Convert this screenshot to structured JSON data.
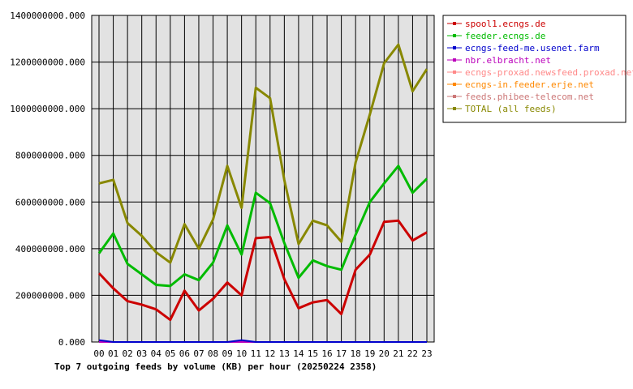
{
  "chart_data": {
    "type": "line",
    "title": "Top 7 outgoing feeds by volume (KB) per hour (20250224 2358)",
    "xlabel": "",
    "ylabel": "",
    "categories": [
      "00",
      "01",
      "02",
      "03",
      "04",
      "05",
      "06",
      "07",
      "08",
      "09",
      "10",
      "11",
      "12",
      "13",
      "14",
      "15",
      "16",
      "17",
      "18",
      "19",
      "20",
      "21",
      "22",
      "23"
    ],
    "ylim": [
      0,
      1400000000
    ],
    "y_ticks": [
      0,
      200000000,
      400000000,
      600000000,
      800000000,
      1000000000,
      1200000000,
      1400000000
    ],
    "y_tick_labels": [
      "0.000",
      "200000000.000",
      "400000000.000",
      "600000000.000",
      "800000000.000",
      "1000000000.000",
      "1200000000.000",
      "1400000000.000"
    ],
    "grid": true,
    "legend_position": "right",
    "series": [
      {
        "name": "spool1.ecngs.de",
        "color": "#cc0000",
        "values": [
          295000000,
          230000000,
          175000000,
          160000000,
          140000000,
          95000000,
          220000000,
          135000000,
          185000000,
          255000000,
          200000000,
          445000000,
          450000000,
          270000000,
          145000000,
          170000000,
          180000000,
          120000000,
          310000000,
          375000000,
          515000000,
          520000000,
          435000000,
          470000000
        ]
      },
      {
        "name": "feeder.ecngs.de",
        "color": "#00bb00",
        "values": [
          380000000,
          465000000,
          335000000,
          290000000,
          245000000,
          240000000,
          290000000,
          265000000,
          340000000,
          500000000,
          375000000,
          640000000,
          595000000,
          425000000,
          275000000,
          350000000,
          325000000,
          310000000,
          460000000,
          600000000,
          680000000,
          755000000,
          640000000,
          700000000
        ]
      },
      {
        "name": "ecngs-feed-me.usenet.farm",
        "color": "#0000cc",
        "values": [
          8000000,
          0,
          0,
          0,
          0,
          0,
          0,
          0,
          0,
          0,
          8000000,
          0,
          0,
          0,
          0,
          0,
          0,
          0,
          0,
          0,
          0,
          0,
          0,
          0
        ]
      },
      {
        "name": "nbr.elbracht.net",
        "color": "#bb00bb",
        "values": [
          0,
          0,
          0,
          0,
          0,
          0,
          0,
          0,
          0,
          0,
          0,
          0,
          0,
          0,
          0,
          0,
          0,
          0,
          0,
          0,
          0,
          0,
          0,
          0
        ]
      },
      {
        "name": "ecngs-proxad.newsfeed.proxad.net",
        "color": "#ff8888",
        "values": [
          0,
          0,
          0,
          0,
          0,
          0,
          0,
          0,
          0,
          0,
          0,
          0,
          0,
          0,
          0,
          0,
          0,
          0,
          0,
          0,
          0,
          0,
          0,
          0
        ]
      },
      {
        "name": "ecngs-in.feeder.erje.net",
        "color": "#ff8800",
        "values": [
          0,
          0,
          0,
          0,
          0,
          0,
          0,
          0,
          0,
          0,
          0,
          0,
          0,
          0,
          0,
          0,
          0,
          0,
          0,
          0,
          0,
          0,
          0,
          0
        ]
      },
      {
        "name": "feeds.phibee-telecom.net",
        "color": "#cc7777",
        "values": [
          0,
          0,
          0,
          0,
          0,
          0,
          0,
          0,
          0,
          0,
          0,
          0,
          0,
          0,
          0,
          0,
          0,
          0,
          0,
          0,
          0,
          0,
          0,
          0
        ]
      },
      {
        "name": "TOTAL (all feeds)",
        "color": "#888800",
        "values": [
          680000000,
          695000000,
          510000000,
          455000000,
          385000000,
          340000000,
          505000000,
          400000000,
          525000000,
          755000000,
          575000000,
          1090000000,
          1045000000,
          695000000,
          420000000,
          520000000,
          500000000,
          430000000,
          770000000,
          975000000,
          1195000000,
          1275000000,
          1075000000,
          1170000000
        ]
      }
    ]
  }
}
